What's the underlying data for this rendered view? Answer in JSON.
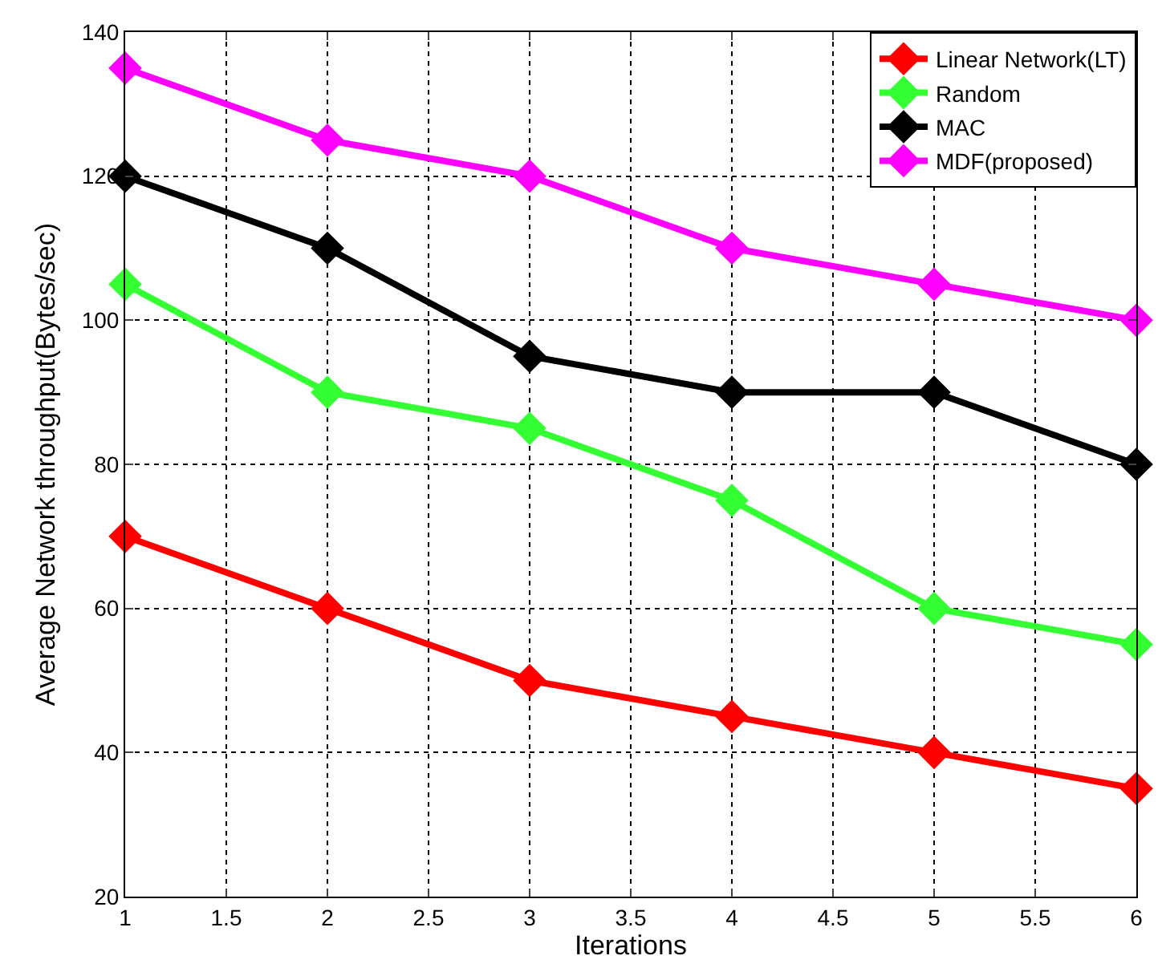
{
  "chart_data": {
    "type": "line",
    "xlabel": "Iterations",
    "ylabel": "Average Network throughput(Bytes/sec)",
    "x": [
      1,
      2,
      3,
      4,
      5,
      6
    ],
    "series": [
      {
        "name": "Linear Network(LT)",
        "color": "#ff0000",
        "values": [
          70,
          60,
          50,
          45,
          40,
          35
        ]
      },
      {
        "name": "Random",
        "color": "#33ff33",
        "values": [
          105,
          90,
          85,
          75,
          60,
          55
        ]
      },
      {
        "name": "MAC",
        "color": "#000000",
        "values": [
          120,
          110,
          95,
          90,
          90,
          80
        ]
      },
      {
        "name": "MDF(proposed)",
        "color": "#ff00ff",
        "values": [
          135,
          125,
          120,
          110,
          105,
          100
        ]
      }
    ],
    "xlim": [
      1,
      6
    ],
    "xticks": [
      1,
      1.5,
      2,
      2.5,
      3,
      3.5,
      4,
      4.5,
      5,
      5.5,
      6
    ],
    "ylim": [
      20,
      140
    ],
    "yticks": [
      20,
      40,
      60,
      80,
      100,
      120,
      140
    ],
    "grid": true,
    "legend": "top right",
    "marker": "diamond",
    "line_style": "solid"
  }
}
